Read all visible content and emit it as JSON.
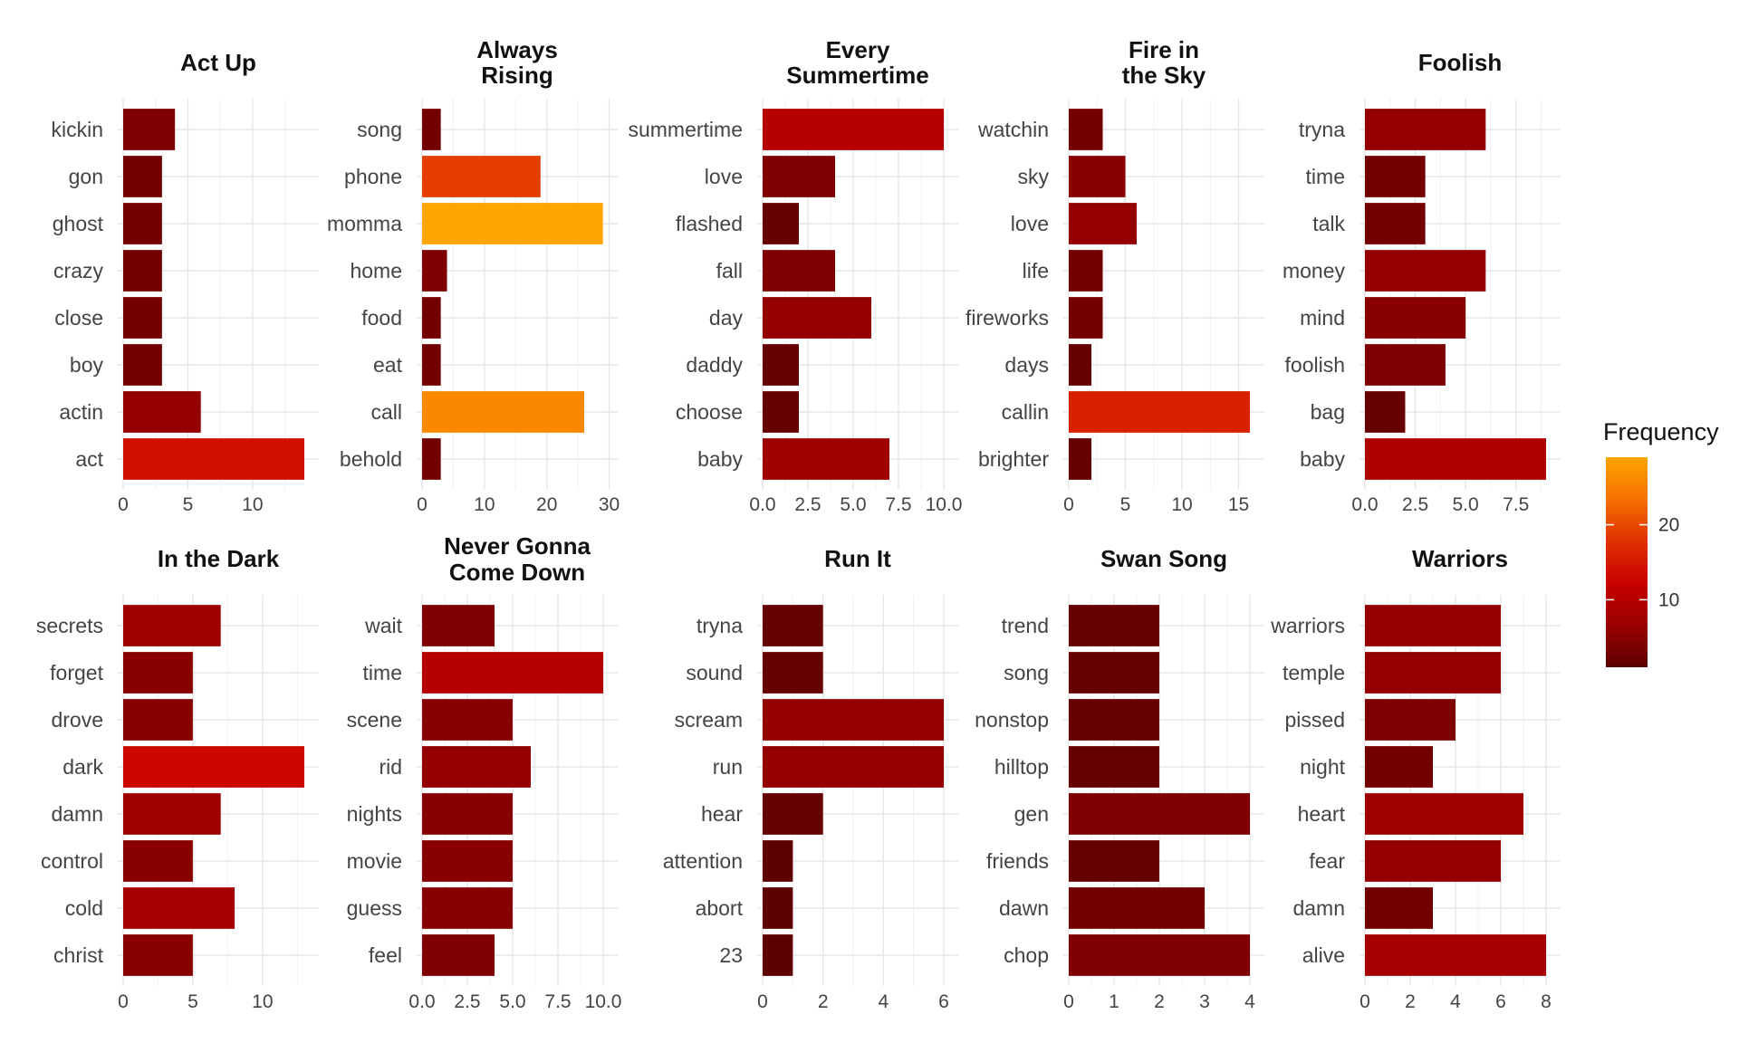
{
  "legend": {
    "title": "Frequency",
    "ticks": [
      10,
      20
    ],
    "range": [
      1,
      29
    ],
    "colors": [
      "#5c0000",
      "#9b0000",
      "#c80000",
      "#e03000",
      "#f57000",
      "#ffa500"
    ]
  },
  "chart_data": [
    {
      "type": "bar",
      "orientation": "horizontal",
      "title": "Act Up",
      "categories": [
        "kickin",
        "gon",
        "ghost",
        "crazy",
        "close",
        "boy",
        "actin",
        "act"
      ],
      "values": [
        4,
        3,
        3,
        3,
        3,
        3,
        6,
        14
      ],
      "xlim": [
        0,
        14.7
      ],
      "xticks": [
        "0",
        "5",
        "10"
      ],
      "xtick_values": [
        0,
        5,
        10
      ]
    },
    {
      "type": "bar",
      "orientation": "horizontal",
      "title": "Always\nRising",
      "categories": [
        "song",
        "phone",
        "momma",
        "home",
        "food",
        "eat",
        "call",
        "behold"
      ],
      "values": [
        3,
        19,
        29,
        4,
        3,
        3,
        26,
        3
      ],
      "xlim": [
        0,
        30.5
      ],
      "xticks": [
        "0",
        "10",
        "20",
        "30"
      ],
      "xtick_values": [
        0,
        10,
        20,
        30
      ]
    },
    {
      "type": "bar",
      "orientation": "horizontal",
      "title": "Every\nSummertime",
      "categories": [
        "summertime",
        "love",
        "flashed",
        "fall",
        "day",
        "daddy",
        "choose",
        "baby"
      ],
      "values": [
        10,
        4,
        2,
        4,
        6,
        2,
        2,
        7
      ],
      "xlim": [
        0,
        10.5
      ],
      "xticks": [
        "0.0",
        "2.5",
        "5.0",
        "7.5",
        "10.0"
      ],
      "xtick_values": [
        0,
        2.5,
        5,
        7.5,
        10
      ]
    },
    {
      "type": "bar",
      "orientation": "horizontal",
      "title": "Fire in\nthe Sky",
      "categories": [
        "watchin",
        "sky",
        "love",
        "life",
        "fireworks",
        "days",
        "callin",
        "brighter"
      ],
      "values": [
        3,
        5,
        6,
        3,
        3,
        2,
        16,
        2
      ],
      "xlim": [
        0,
        16.8
      ],
      "xticks": [
        "0",
        "5",
        "10",
        "15"
      ],
      "xtick_values": [
        0,
        5,
        10,
        15
      ]
    },
    {
      "type": "bar",
      "orientation": "horizontal",
      "title": "Foolish",
      "categories": [
        "tryna",
        "time",
        "talk",
        "money",
        "mind",
        "foolish",
        "bag",
        "baby"
      ],
      "values": [
        6,
        3,
        3,
        6,
        5,
        4,
        2,
        9
      ],
      "xlim": [
        0,
        9.45
      ],
      "xticks": [
        "0.0",
        "2.5",
        "5.0",
        "7.5"
      ],
      "xtick_values": [
        0,
        2.5,
        5,
        7.5
      ]
    },
    {
      "type": "bar",
      "orientation": "horizontal",
      "title": "In the Dark",
      "categories": [
        "secrets",
        "forget",
        "drove",
        "dark",
        "damn",
        "control",
        "cold",
        "christ"
      ],
      "values": [
        7,
        5,
        5,
        13,
        7,
        5,
        8,
        5
      ],
      "xlim": [
        0,
        13.65
      ],
      "xticks": [
        "0",
        "5",
        "10"
      ],
      "xtick_values": [
        0,
        5,
        10
      ]
    },
    {
      "type": "bar",
      "orientation": "horizontal",
      "title": "Never Gonna\nCome Down",
      "categories": [
        "wait",
        "time",
        "scene",
        "rid",
        "nights",
        "movie",
        "guess",
        "feel"
      ],
      "values": [
        4,
        10,
        5,
        6,
        5,
        5,
        5,
        4
      ],
      "xlim": [
        0,
        10.5
      ],
      "xticks": [
        "0.0",
        "2.5",
        "5.0",
        "7.5",
        "10.0"
      ],
      "xtick_values": [
        0,
        2.5,
        5,
        7.5,
        10
      ]
    },
    {
      "type": "bar",
      "orientation": "horizontal",
      "title": "Run It",
      "categories": [
        "tryna",
        "sound",
        "scream",
        "run",
        "hear",
        "attention",
        "abort",
        "23"
      ],
      "values": [
        2,
        2,
        6,
        6,
        2,
        1,
        1,
        1
      ],
      "xlim": [
        0,
        6.3
      ],
      "xticks": [
        "0",
        "2",
        "4",
        "6"
      ],
      "xtick_values": [
        0,
        2,
        4,
        6
      ]
    },
    {
      "type": "bar",
      "orientation": "horizontal",
      "title": "Swan Song",
      "categories": [
        "trend",
        "song",
        "nonstop",
        "hilltop",
        "gen",
        "friends",
        "dawn",
        "chop"
      ],
      "values": [
        2,
        2,
        2,
        2,
        4,
        2,
        3,
        4
      ],
      "xlim": [
        0,
        4.2
      ],
      "xticks": [
        "0",
        "1",
        "2",
        "3",
        "4"
      ],
      "xtick_values": [
        0,
        1,
        2,
        3,
        4
      ]
    },
    {
      "type": "bar",
      "orientation": "horizontal",
      "title": "Warriors",
      "categories": [
        "warriors",
        "temple",
        "pissed",
        "night",
        "heart",
        "fear",
        "damn",
        "alive"
      ],
      "values": [
        6,
        6,
        4,
        3,
        7,
        6,
        3,
        8
      ],
      "xlim": [
        0,
        8.4
      ],
      "xticks": [
        "0",
        "2",
        "4",
        "6",
        "8"
      ],
      "xtick_values": [
        0,
        2,
        4,
        6,
        8
      ]
    }
  ]
}
